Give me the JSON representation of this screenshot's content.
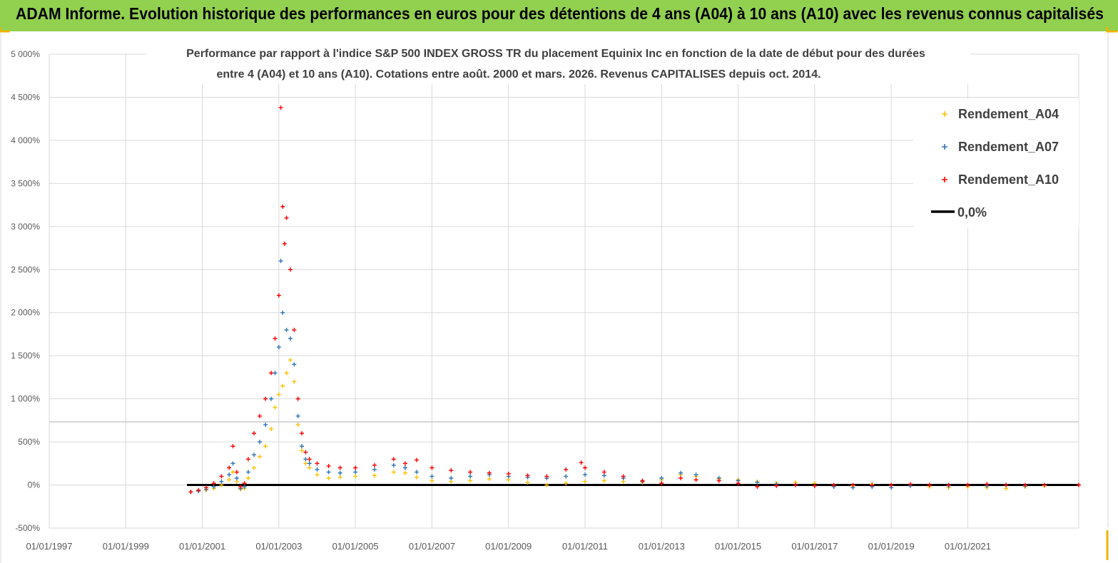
{
  "banner": {
    "title": "ADAM Informe. Evolution historique des performances en euros pour des détentions de 4 ans (A04) à 10 ans (A10) avec les revenus connus capitalisés",
    "color": "#92d050"
  },
  "chart_data": {
    "type": "scatter",
    "title_line1": "Performance par rapport à l'indice S&P 500 INDEX GROSS TR  du placement Equinix Inc en fonction de la date de début pour des durées",
    "title_line2": "entre 4 (A04) et 10 ans (A10). Cotations entre août. 2000 et mars. 2026. Revenus CAPITALISES depuis oct. 2014.",
    "xlabel": "",
    "ylabel": "",
    "xlim": [
      1997.0,
      2023.9
    ],
    "ylim": [
      -500,
      5000
    ],
    "yticks": [
      {
        "v": 5000,
        "label": "5 000%"
      },
      {
        "v": 4500,
        "label": "4 500%"
      },
      {
        "v": 4000,
        "label": "4 000%"
      },
      {
        "v": 3500,
        "label": "3 500%"
      },
      {
        "v": 3000,
        "label": "3 000%"
      },
      {
        "v": 2500,
        "label": "2 500%"
      },
      {
        "v": 2000,
        "label": "2 000%"
      },
      {
        "v": 1500,
        "label": "1 500%"
      },
      {
        "v": 1000,
        "label": "1 000%"
      },
      {
        "v": 500,
        "label": "500%"
      },
      {
        "v": 0,
        "label": "0%"
      },
      {
        "v": -500,
        "label": "-500%"
      }
    ],
    "xticks": [
      {
        "v": 1997,
        "label": "01/01/1997"
      },
      {
        "v": 1999,
        "label": "01/01/1999"
      },
      {
        "v": 2001,
        "label": "01/01/2001"
      },
      {
        "v": 2003,
        "label": "01/01/2003"
      },
      {
        "v": 2005,
        "label": "01/01/2005"
      },
      {
        "v": 2007,
        "label": "01/01/2007"
      },
      {
        "v": 2009,
        "label": "01/01/2009"
      },
      {
        "v": 2011,
        "label": "01/01/2011"
      },
      {
        "v": 2013,
        "label": "01/01/2013"
      },
      {
        "v": 2015,
        "label": "01/01/2015"
      },
      {
        "v": 2017,
        "label": "01/01/2017"
      },
      {
        "v": 2019,
        "label": "01/01/2019"
      },
      {
        "v": 2021,
        "label": "01/01/2021"
      }
    ],
    "grid": true,
    "legend_position": "top-right",
    "series": [
      {
        "name": "Rendement_A04",
        "color": "#ffc000",
        "marker": "+",
        "points": [
          [
            2000.7,
            -80
          ],
          [
            2000.9,
            -70
          ],
          [
            2001.1,
            -60
          ],
          [
            2001.3,
            -40
          ],
          [
            2001.5,
            0
          ],
          [
            2001.7,
            60
          ],
          [
            2001.8,
            150
          ],
          [
            2001.9,
            40
          ],
          [
            2002.0,
            -50
          ],
          [
            2002.1,
            -40
          ],
          [
            2002.2,
            80
          ],
          [
            2002.35,
            200
          ],
          [
            2002.5,
            330
          ],
          [
            2002.65,
            450
          ],
          [
            2002.8,
            650
          ],
          [
            2002.9,
            900
          ],
          [
            2003.0,
            1050
          ],
          [
            2003.1,
            1150
          ],
          [
            2003.2,
            1300
          ],
          [
            2003.3,
            1450
          ],
          [
            2003.4,
            1200
          ],
          [
            2003.5,
            700
          ],
          [
            2003.6,
            400
          ],
          [
            2003.7,
            250
          ],
          [
            2003.8,
            200
          ],
          [
            2004.0,
            120
          ],
          [
            2004.3,
            80
          ],
          [
            2004.6,
            90
          ],
          [
            2005.0,
            100
          ],
          [
            2005.5,
            110
          ],
          [
            2006.0,
            150
          ],
          [
            2006.3,
            140
          ],
          [
            2006.6,
            90
          ],
          [
            2007.0,
            50
          ],
          [
            2007.5,
            40
          ],
          [
            2008.0,
            50
          ],
          [
            2008.5,
            70
          ],
          [
            2009.0,
            60
          ],
          [
            2009.5,
            30
          ],
          [
            2010.0,
            0
          ],
          [
            2010.5,
            20
          ],
          [
            2011.0,
            40
          ],
          [
            2011.5,
            50
          ],
          [
            2012.0,
            40
          ],
          [
            2012.5,
            30
          ],
          [
            2013.0,
            60
          ],
          [
            2013.5,
            120
          ],
          [
            2013.9,
            100
          ],
          [
            2014.5,
            70
          ],
          [
            2015.0,
            60
          ],
          [
            2015.5,
            40
          ],
          [
            2016.0,
            20
          ],
          [
            2016.5,
            30
          ],
          [
            2017.0,
            20
          ],
          [
            2017.5,
            0
          ],
          [
            2018.0,
            -10
          ],
          [
            2018.5,
            10
          ],
          [
            2019.0,
            0
          ],
          [
            2019.5,
            -10
          ],
          [
            2020.0,
            -20
          ],
          [
            2020.5,
            -30
          ],
          [
            2021.0,
            -20
          ],
          [
            2021.5,
            -30
          ],
          [
            2022.0,
            -40
          ],
          [
            2022.5,
            -20
          ],
          [
            2023.0,
            -10
          ],
          [
            2023.9,
            0
          ]
        ]
      },
      {
        "name": "Rendement_A07",
        "color": "#2e75b6",
        "marker": "+",
        "points": [
          [
            2000.7,
            -80
          ],
          [
            2000.9,
            -70
          ],
          [
            2001.1,
            -50
          ],
          [
            2001.3,
            -20
          ],
          [
            2001.5,
            40
          ],
          [
            2001.7,
            120
          ],
          [
            2001.8,
            250
          ],
          [
            2001.9,
            80
          ],
          [
            2002.0,
            -40
          ],
          [
            2002.1,
            -20
          ],
          [
            2002.2,
            150
          ],
          [
            2002.35,
            350
          ],
          [
            2002.5,
            500
          ],
          [
            2002.65,
            700
          ],
          [
            2002.8,
            1000
          ],
          [
            2002.9,
            1300
          ],
          [
            2003.0,
            1600
          ],
          [
            2003.05,
            2600
          ],
          [
            2003.1,
            2000
          ],
          [
            2003.2,
            1800
          ],
          [
            2003.3,
            1700
          ],
          [
            2003.4,
            1400
          ],
          [
            2003.5,
            800
          ],
          [
            2003.6,
            450
          ],
          [
            2003.7,
            300
          ],
          [
            2003.8,
            250
          ],
          [
            2004.0,
            180
          ],
          [
            2004.3,
            150
          ],
          [
            2004.6,
            140
          ],
          [
            2005.0,
            150
          ],
          [
            2005.5,
            180
          ],
          [
            2006.0,
            230
          ],
          [
            2006.3,
            200
          ],
          [
            2006.6,
            150
          ],
          [
            2007.0,
            100
          ],
          [
            2007.5,
            80
          ],
          [
            2008.0,
            100
          ],
          [
            2008.5,
            120
          ],
          [
            2009.0,
            100
          ],
          [
            2009.5,
            90
          ],
          [
            2010.0,
            80
          ],
          [
            2010.5,
            100
          ],
          [
            2011.0,
            120
          ],
          [
            2011.5,
            110
          ],
          [
            2012.0,
            80
          ],
          [
            2012.5,
            40
          ],
          [
            2013.0,
            80
          ],
          [
            2013.5,
            140
          ],
          [
            2013.9,
            120
          ],
          [
            2014.5,
            80
          ],
          [
            2015.0,
            50
          ],
          [
            2015.5,
            30
          ],
          [
            2016.0,
            10
          ],
          [
            2016.5,
            0
          ],
          [
            2017.0,
            -10
          ],
          [
            2017.5,
            -20
          ],
          [
            2018.0,
            -30
          ],
          [
            2018.5,
            -20
          ],
          [
            2019.0,
            -30
          ],
          [
            2019.5,
            -10
          ],
          [
            2020.0,
            0
          ],
          [
            2020.5,
            -10
          ],
          [
            2021.0,
            0
          ],
          [
            2021.5,
            -10
          ],
          [
            2022.0,
            0
          ],
          [
            2022.5,
            -10
          ],
          [
            2023.0,
            0
          ],
          [
            2023.9,
            0
          ]
        ]
      },
      {
        "name": "Rendement_A10",
        "color": "#ff0000",
        "marker": "+",
        "points": [
          [
            2000.7,
            -80
          ],
          [
            2000.9,
            -60
          ],
          [
            2001.1,
            -30
          ],
          [
            2001.3,
            20
          ],
          [
            2001.5,
            100
          ],
          [
            2001.7,
            200
          ],
          [
            2001.8,
            450
          ],
          [
            2001.9,
            150
          ],
          [
            2002.0,
            -20
          ],
          [
            2002.1,
            20
          ],
          [
            2002.2,
            300
          ],
          [
            2002.35,
            600
          ],
          [
            2002.5,
            800
          ],
          [
            2002.65,
            1000
          ],
          [
            2002.8,
            1300
          ],
          [
            2002.9,
            1700
          ],
          [
            2003.0,
            2200
          ],
          [
            2003.05,
            4380
          ],
          [
            2003.1,
            3230
          ],
          [
            2003.15,
            2800
          ],
          [
            2003.2,
            3100
          ],
          [
            2003.3,
            2500
          ],
          [
            2003.4,
            1800
          ],
          [
            2003.5,
            1000
          ],
          [
            2003.6,
            600
          ],
          [
            2003.7,
            380
          ],
          [
            2003.8,
            300
          ],
          [
            2004.0,
            250
          ],
          [
            2004.3,
            220
          ],
          [
            2004.6,
            200
          ],
          [
            2005.0,
            200
          ],
          [
            2005.5,
            230
          ],
          [
            2006.0,
            300
          ],
          [
            2006.3,
            250
          ],
          [
            2006.6,
            290
          ],
          [
            2007.0,
            200
          ],
          [
            2007.5,
            170
          ],
          [
            2008.0,
            150
          ],
          [
            2008.5,
            140
          ],
          [
            2009.0,
            130
          ],
          [
            2009.5,
            110
          ],
          [
            2010.0,
            100
          ],
          [
            2010.5,
            180
          ],
          [
            2010.9,
            260
          ],
          [
            2011.0,
            200
          ],
          [
            2011.5,
            150
          ],
          [
            2012.0,
            100
          ],
          [
            2012.5,
            50
          ],
          [
            2013.0,
            20
          ],
          [
            2013.5,
            80
          ],
          [
            2013.9,
            60
          ],
          [
            2014.5,
            50
          ],
          [
            2015.0,
            20
          ],
          [
            2015.5,
            -20
          ],
          [
            2016.0,
            -10
          ],
          [
            2016.5,
            0
          ],
          [
            2017.0,
            -10
          ],
          [
            2017.5,
            0
          ],
          [
            2018.0,
            0
          ],
          [
            2018.5,
            0
          ],
          [
            2019.0,
            0
          ],
          [
            2019.5,
            10
          ],
          [
            2020.0,
            0
          ],
          [
            2020.5,
            0
          ],
          [
            2021.0,
            0
          ],
          [
            2021.5,
            10
          ],
          [
            2022.0,
            0
          ],
          [
            2022.5,
            0
          ],
          [
            2023.0,
            0
          ],
          [
            2023.9,
            0
          ]
        ]
      }
    ],
    "reference_line": {
      "name": "0,0%",
      "y": 0,
      "x_start": 2000.6,
      "x_end": 2023.9,
      "color": "#000000"
    }
  }
}
